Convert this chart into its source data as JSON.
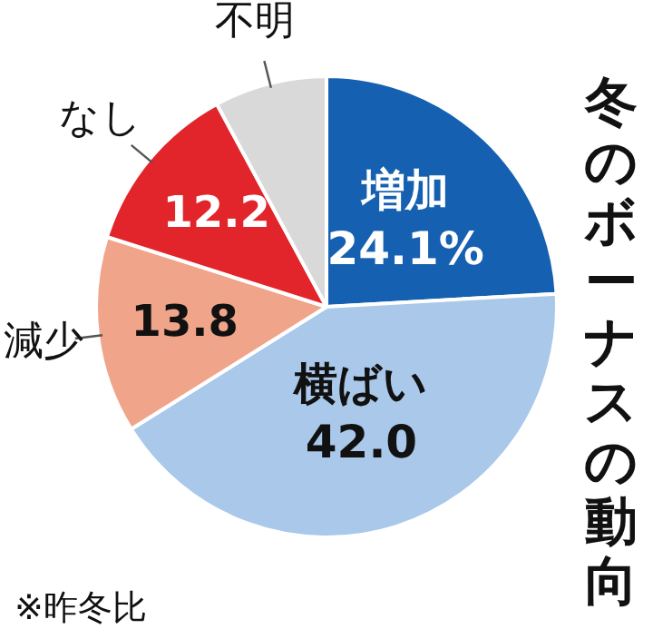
{
  "chart_data": {
    "type": "pie",
    "title": "冬のボーナスの動向",
    "categories": [
      "増加",
      "横ばい",
      "減少",
      "なし",
      "不明"
    ],
    "values": [
      24.1,
      42.0,
      13.8,
      12.2,
      7.9
    ],
    "colors": [
      "#1560b0",
      "#a9c8ea",
      "#f0a48a",
      "#e2252b",
      "#d9d9d9"
    ],
    "value_labels": [
      "24.1%",
      "42.0",
      "13.8",
      "12.2",
      null
    ],
    "legend": false,
    "annotations": [
      "※昨冬比"
    ]
  }
}
